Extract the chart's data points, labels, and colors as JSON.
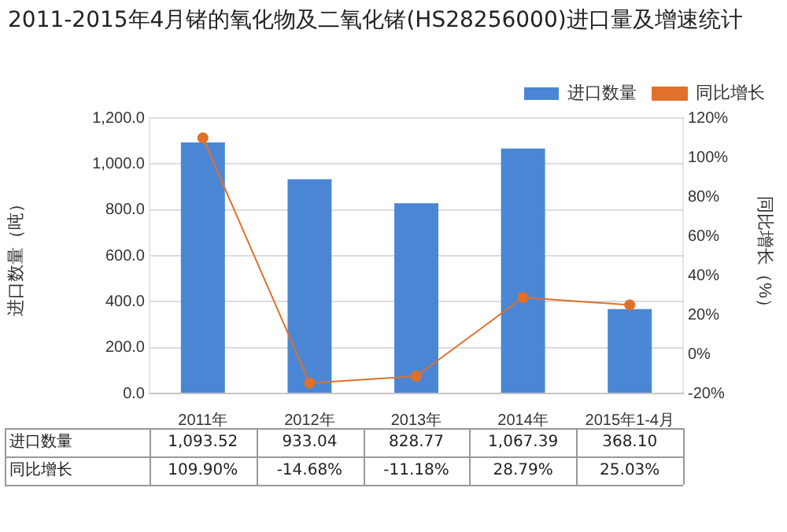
{
  "chart_data": {
    "type": "bar",
    "title": "2011-2015年4月锗的氧化物及二氧化锗(HS28256000)进口量及增速统计",
    "ylabel": "进口数量（吨）",
    "y2label": "同比增长（%）",
    "categories": [
      "2011年",
      "2012年",
      "2013年",
      "2014年",
      "2015年1-4月"
    ],
    "series": [
      {
        "name": "进口数量",
        "color": "#4a86d4",
        "values": [
          1093.52,
          933.04,
          828.77,
          1067.39,
          368.1
        ],
        "value_labels": [
          "1,093.52",
          "933.04",
          "828.77",
          "1,067.39",
          "368.10"
        ]
      },
      {
        "name": "同比增长",
        "type": "line",
        "axis": "y2",
        "color": "#e0702a",
        "marker": "circle",
        "values": [
          109.9,
          -14.68,
          -11.18,
          28.79,
          25.03
        ],
        "value_labels": [
          "109.90%",
          "-14.68%",
          "-11.18%",
          "28.79%",
          "25.03%"
        ]
      }
    ],
    "ylim": [
      0,
      1200
    ],
    "yticks": [
      {
        "value": 0,
        "label": "0.0"
      },
      {
        "value": 200,
        "label": "200.0"
      },
      {
        "value": 400,
        "label": "400.0"
      },
      {
        "value": 600,
        "label": "600.0"
      },
      {
        "value": 800,
        "label": "800.0"
      },
      {
        "value": 1000,
        "label": "1,000.0"
      },
      {
        "value": 1200,
        "label": "1,200.0"
      }
    ],
    "y2lim": [
      -20,
      120
    ],
    "y2ticks": [
      {
        "value": -20,
        "label": "-20%"
      },
      {
        "value": 0,
        "label": "0%"
      },
      {
        "value": 20,
        "label": "20%"
      },
      {
        "value": 40,
        "label": "40%"
      },
      {
        "value": 60,
        "label": "60%"
      },
      {
        "value": 80,
        "label": "80%"
      },
      {
        "value": 100,
        "label": "100%"
      },
      {
        "value": 120,
        "label": "120%"
      }
    ],
    "grid": "y",
    "legend": "top right"
  }
}
